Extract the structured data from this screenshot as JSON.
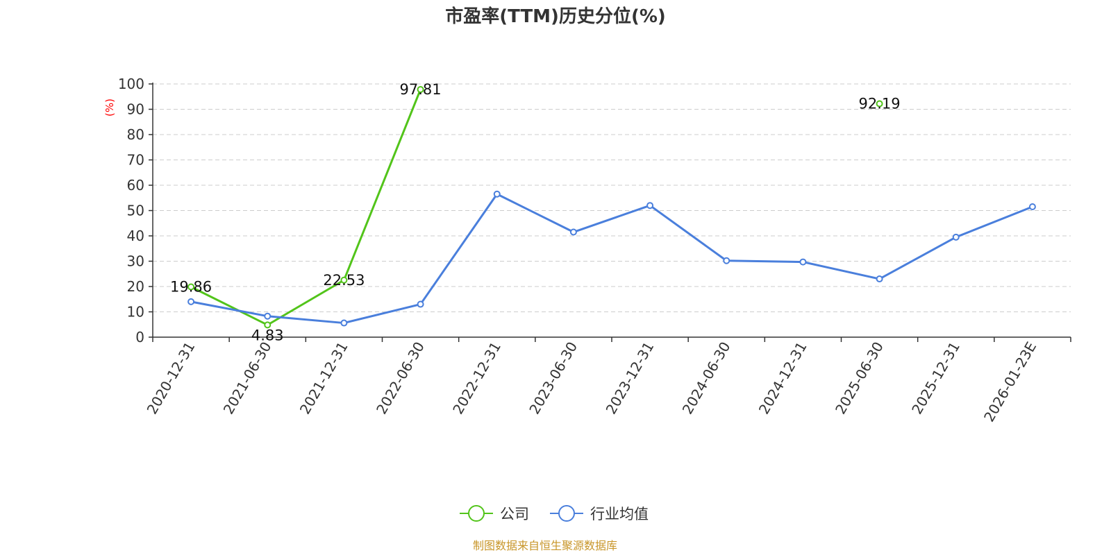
{
  "chart_data": {
    "type": "line",
    "title": "市盈率(TTM)历史分位(%)",
    "ylabel": "(%)",
    "ylim": [
      0,
      100
    ],
    "yticks": [
      0,
      10,
      20,
      30,
      40,
      50,
      60,
      70,
      80,
      90,
      100
    ],
    "grid": true,
    "legend_position": "bottom-center",
    "categories": [
      "2020-12-31",
      "2021-06-30",
      "2021-12-31",
      "2022-06-30",
      "2022-12-31",
      "2023-06-30",
      "2023-12-31",
      "2024-06-30",
      "2024-12-31",
      "2025-06-30",
      "2025-12-31",
      "2026-01-23E"
    ],
    "series": [
      {
        "name": "公司",
        "color": "#52c41a",
        "values": [
          19.86,
          4.83,
          22.53,
          97.81,
          null,
          null,
          null,
          null,
          null,
          92.19,
          null,
          null
        ],
        "data_labels": [
          "19.86",
          "4.83",
          "22.53",
          "97.81",
          null,
          null,
          null,
          null,
          null,
          "92.19",
          null,
          null
        ]
      },
      {
        "name": "行业均值",
        "color": "#4a7fdc",
        "values": [
          14.0,
          8.3,
          5.6,
          13.0,
          56.5,
          41.5,
          52.0,
          30.2,
          29.7,
          23.0,
          39.5,
          51.5
        ]
      }
    ]
  },
  "source_text": "制图数据来自恒生聚源数据库",
  "colors": {
    "axis": "#333333",
    "grid": "#cccccc",
    "ylabel": "#ff0000",
    "source": "#c8962a"
  }
}
